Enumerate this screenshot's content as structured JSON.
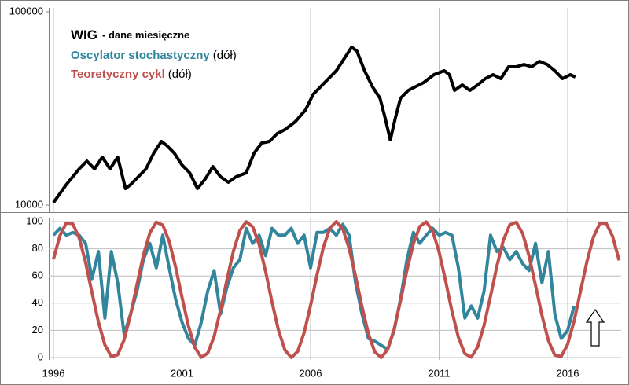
{
  "chart_data": [
    {
      "type": "line",
      "title": "WIG",
      "subtitle": "- dane miesięczne",
      "log": true,
      "color": "#000000",
      "ylim": [
        10000,
        100000
      ],
      "yticks": [
        10000,
        100000
      ],
      "xlim": [
        1996,
        2018.08
      ],
      "xticks": [
        1996,
        2001,
        2006,
        2011,
        2016
      ],
      "x": [
        1996.0,
        1996.5,
        1997.0,
        1997.3,
        1997.6,
        1997.9,
        1998.2,
        1998.5,
        1998.8,
        1999.0,
        1999.3,
        1999.6,
        1999.9,
        2000.2,
        2000.4,
        2000.7,
        2001.0,
        2001.3,
        2001.6,
        2001.9,
        2002.2,
        2002.5,
        2002.8,
        2003.1,
        2003.5,
        2003.8,
        2004.1,
        2004.4,
        2004.7,
        2005.0,
        2005.4,
        2005.8,
        2006.1,
        2006.4,
        2006.7,
        2007.0,
        2007.3,
        2007.6,
        2007.8,
        2008.1,
        2008.4,
        2008.7,
        2008.9,
        2009.1,
        2009.3,
        2009.5,
        2009.8,
        2010.1,
        2010.4,
        2010.8,
        2011.2,
        2011.4,
        2011.6,
        2011.9,
        2012.2,
        2012.5,
        2012.8,
        2013.1,
        2013.4,
        2013.7,
        2014.0,
        2014.3,
        2014.6,
        2014.9,
        2015.2,
        2015.5,
        2015.8,
        2016.1,
        2016.3
      ],
      "values": [
        10300,
        12760,
        15380,
        16890,
        15380,
        17700,
        15380,
        17700,
        12170,
        12760,
        14010,
        15380,
        18550,
        21350,
        20370,
        18550,
        16120,
        14680,
        12170,
        13620,
        15820,
        14010,
        13120,
        14010,
        14680,
        18550,
        20950,
        21350,
        23440,
        24560,
        26980,
        31040,
        37420,
        41110,
        45130,
        49570,
        57040,
        65640,
        62610,
        49570,
        41110,
        35720,
        28270,
        21750,
        28270,
        35720,
        39230,
        41110,
        43060,
        47300,
        49570,
        47300,
        39230,
        41880,
        39230,
        41880,
        45130,
        47300,
        45130,
        51930,
        51930,
        53420,
        51930,
        55450,
        53420,
        49570,
        45130,
        47300,
        45980
      ]
    },
    {
      "type": "line",
      "grid": true,
      "legend_note": "(dół)",
      "ylim": [
        0,
        100
      ],
      "yticks": [
        0,
        20,
        40,
        60,
        80,
        100
      ],
      "xlim": [
        1996,
        2018.08
      ],
      "xticks": [
        1996,
        2001,
        2006,
        2011,
        2016
      ],
      "x": [
        1996,
        1996.25,
        1996.5,
        1996.75,
        1997,
        1997.25,
        1997.5,
        1997.75,
        1998,
        1998.25,
        1998.5,
        1998.75,
        1999,
        1999.25,
        1999.5,
        1999.75,
        2000,
        2000.25,
        2000.5,
        2000.75,
        2001,
        2001.25,
        2001.5,
        2001.75,
        2002,
        2002.25,
        2002.5,
        2002.75,
        2003,
        2003.25,
        2003.5,
        2003.75,
        2004,
        2004.25,
        2004.5,
        2004.75,
        2005,
        2005.25,
        2005.5,
        2005.75,
        2006,
        2006.25,
        2006.5,
        2006.75,
        2007,
        2007.25,
        2007.5,
        2007.75,
        2008,
        2008.25,
        2008.5,
        2008.75,
        2009,
        2009.25,
        2009.5,
        2009.75,
        2010,
        2010.25,
        2010.5,
        2010.75,
        2011,
        2011.25,
        2011.5,
        2011.75,
        2012,
        2012.25,
        2012.5,
        2012.75,
        2013,
        2013.25,
        2013.5,
        2013.75,
        2014,
        2014.25,
        2014.5,
        2014.75,
        2015,
        2015.25,
        2015.5,
        2015.75,
        2016,
        2016.25,
        2016.5,
        2016.75,
        2017,
        2017.25,
        2017.5,
        2017.75,
        2018
      ],
      "series": [
        {
          "name": "Oscylator stochastyczny",
          "color": "#31859c",
          "values": [
            90,
            95,
            90,
            92,
            90,
            84,
            58,
            78,
            29,
            78,
            55,
            17,
            32,
            49,
            72,
            84,
            66,
            90,
            66,
            43,
            26,
            14,
            9,
            26,
            49,
            64,
            32,
            52,
            66,
            72,
            95,
            84,
            90,
            75,
            95,
            90,
            90,
            95,
            84,
            90,
            66,
            92,
            92,
            95,
            90,
            98,
            90,
            55,
            32,
            14,
            12,
            9,
            6,
            20,
            43,
            72,
            92,
            84,
            90,
            95,
            90,
            92,
            90,
            66,
            29,
            38,
            29,
            49,
            90,
            78,
            81,
            72,
            78,
            69,
            64,
            84,
            55,
            78,
            32,
            14,
            20,
            38,
            null,
            null,
            null,
            null,
            null,
            null,
            null
          ]
        },
        {
          "name": "Teoretyczny cykl",
          "color": "#c0504d",
          "values": [
            72.3,
            89.7,
            99.0,
            98.4,
            88.0,
            69.9,
            47.8,
            26.1,
            9.3,
            0.7,
            2.1,
            13.1,
            31.7,
            53.9,
            75.4,
            91.7,
            99.6,
            97.4,
            85.7,
            66.7,
            44.3,
            23.1,
            7.4,
            0.2,
            3.2,
            15.6,
            35.0,
            57.4,
            78.3,
            93.5,
            99.9,
            96.2,
            83.1,
            63.4,
            40.9,
            20.3,
            5.6,
            0.0,
            4.5,
            18.2,
            38.3,
            60.8,
            81.1,
            95.1,
            100,
            94.7,
            80.4,
            60.0,
            37.5,
            17.5,
            4.1,
            0.0,
            6.0,
            21.0,
            41.7,
            64.2,
            83.8,
            96.5,
            99.8,
            93.1,
            77.6,
            56.5,
            34.1,
            14.9,
            2.9,
            0.3,
            7.8,
            23.9,
            45.2,
            67.5,
            86.3,
            97.7,
            99.5,
            91.2,
            74.6,
            53.1,
            30.9,
            12.5,
            1.8,
            0.8,
            9.8,
            26.9,
            48.7,
            70.7,
            88.6,
            98.6,
            98.8,
            89.1,
            71.5
          ]
        }
      ]
    }
  ]
}
